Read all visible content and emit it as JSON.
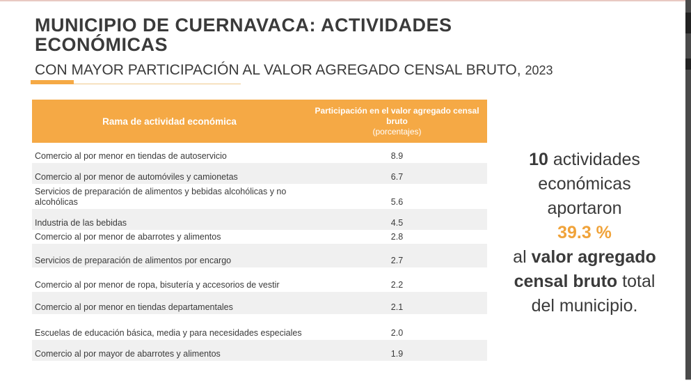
{
  "slide": {
    "title": "MUNICIPIO DE CUERNAVACA: ACTIVIDADES ECONÓMICAS",
    "subtitle": "CON MAYOR PARTICIPACIÓN AL VALOR AGREGADO CENSAL BRUTO,",
    "year": "2023"
  },
  "table": {
    "headers": {
      "rama": "Rama de actividad económica",
      "participacion": "Participación en el valor agregado censal bruto",
      "unidad": "(porcentajes)"
    },
    "rows": [
      {
        "activity": "Comercio al por menor en tiendas de autoservicio",
        "value": "8.9"
      },
      {
        "activity": "Comercio al por menor de automóviles y camionetas",
        "value": "6.7"
      },
      {
        "activity": "Servicios de preparación de alimentos y bebidas alcohólicas y no alcohólicas",
        "value": "5.6"
      },
      {
        "activity": "Industria de las bebidas",
        "value": "4.5"
      },
      {
        "activity": "Comercio al por menor de abarrotes y alimentos",
        "value": "2.8"
      },
      {
        "activity": "Servicios de preparación de alimentos por encargo",
        "value": "2.7"
      },
      {
        "activity": "Comercio al por menor de ropa, bisutería y accesorios de vestir",
        "value": "2.2"
      },
      {
        "activity": "Comercio al por menor en tiendas departamentales",
        "value": "2.1"
      },
      {
        "activity": "Escuelas de educación básica, media y para necesidades especiales",
        "value": "2.0"
      },
      {
        "activity": "Comercio al por mayor de abarrotes y alimentos",
        "value": "1.9"
      }
    ]
  },
  "summary": {
    "count": "10",
    "line1_rest": " actividades",
    "line2": "económicas",
    "line3": "aportaron",
    "percent": "39.3 %",
    "line5_pre": "al ",
    "line5_bold": "valor agregado",
    "line6_bold": "censal bruto",
    "line6_rest": " total",
    "line7": "del municipio."
  },
  "colors": {
    "accent": "#f5a945",
    "text": "#3a3a3a",
    "highlight": "#f0a33a"
  }
}
